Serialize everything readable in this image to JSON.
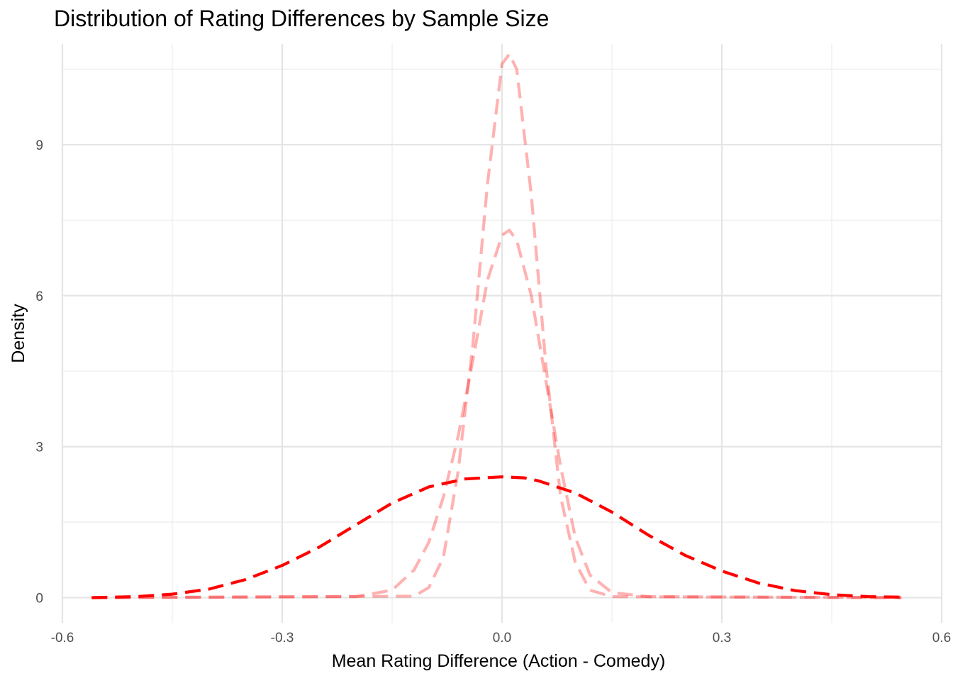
{
  "chart_data": {
    "type": "line",
    "title": "Distribution of Rating Differences by Sample Size",
    "xlabel": "Mean Rating Difference (Action - Comedy)",
    "ylabel": "Density",
    "xlim": [
      -0.6,
      0.6
    ],
    "ylim": [
      -0.5,
      11.0
    ],
    "x_ticks": [
      -0.6,
      -0.3,
      0.0,
      0.3,
      0.6
    ],
    "x_tick_labels": [
      "-0.6",
      "-0.3",
      "0.0",
      "0.3",
      "0.6"
    ],
    "y_ticks": [
      0,
      3,
      6,
      9
    ],
    "y_tick_labels": [
      "0",
      "3",
      "6",
      "9"
    ],
    "grid": true,
    "legend": "none",
    "series": [
      {
        "color": "#ff0000",
        "opacity": 1.0,
        "style": "dashed",
        "x": [
          -0.56,
          -0.5,
          -0.45,
          -0.4,
          -0.35,
          -0.3,
          -0.25,
          -0.2,
          -0.15,
          -0.1,
          -0.05,
          0.0,
          0.03,
          0.05,
          0.1,
          0.15,
          0.2,
          0.25,
          0.3,
          0.35,
          0.4,
          0.45,
          0.5,
          0.545
        ],
        "y": [
          0.0,
          0.02,
          0.07,
          0.17,
          0.36,
          0.64,
          1.0,
          1.44,
          1.88,
          2.2,
          2.36,
          2.4,
          2.38,
          2.32,
          2.08,
          1.7,
          1.24,
          0.84,
          0.53,
          0.29,
          0.14,
          0.06,
          0.02,
          0.01
        ]
      },
      {
        "color": "#ff0000",
        "opacity": 0.3,
        "style": "dashed",
        "x": [
          -0.56,
          -0.2,
          -0.15,
          -0.12,
          -0.1,
          -0.08,
          -0.06,
          -0.04,
          -0.02,
          0.0,
          0.01,
          0.02,
          0.04,
          0.06,
          0.08,
          0.1,
          0.12,
          0.15,
          0.2,
          0.545
        ],
        "y": [
          0.0,
          0.02,
          0.15,
          0.55,
          1.1,
          2.0,
          3.2,
          4.7,
          6.3,
          7.2,
          7.3,
          7.1,
          6.0,
          4.3,
          2.6,
          1.2,
          0.45,
          0.1,
          0.02,
          0.0
        ]
      },
      {
        "color": "#ff0000",
        "opacity": 0.3,
        "style": "dashed",
        "x": [
          -0.56,
          -0.12,
          -0.1,
          -0.08,
          -0.06,
          -0.04,
          -0.02,
          0.0,
          0.01,
          0.02,
          0.04,
          0.06,
          0.08,
          0.1,
          0.12,
          0.15,
          0.545
        ],
        "y": [
          0.0,
          0.03,
          0.2,
          0.8,
          2.5,
          5.0,
          8.2,
          10.6,
          10.8,
          10.5,
          8.0,
          4.6,
          2.0,
          0.7,
          0.15,
          0.02,
          0.0
        ]
      }
    ]
  }
}
